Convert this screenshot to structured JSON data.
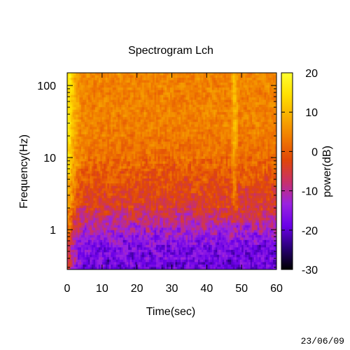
{
  "chart_data": {
    "type": "heatmap",
    "title": "Spectrogram Lch",
    "xlabel": "Time(sec)",
    "ylabel": "Frequency(Hz)",
    "colorbar_label": "power(dB)",
    "x_scale": "linear",
    "y_scale": "log",
    "xlim": [
      0,
      60
    ],
    "ylim": [
      0.28,
      150
    ],
    "clim": [
      -30,
      20
    ],
    "x_ticks": [
      0,
      10,
      20,
      30,
      40,
      50,
      60
    ],
    "x_tick_labels": [
      "0",
      "10",
      "20",
      "30",
      "40",
      "50",
      "60"
    ],
    "y_ticks": [
      1,
      10,
      100
    ],
    "y_tick_labels": [
      "1",
      "10",
      "100"
    ],
    "colorbar_ticks": [
      -30,
      -20,
      -10,
      0,
      10,
      20
    ],
    "colorbar_tick_labels": [
      "-30",
      "-20",
      "-10",
      "0",
      "10",
      "20"
    ],
    "grid": false,
    "colormap": [
      "#000000",
      "#2a0078",
      "#6a00e8",
      "#9a23e0",
      "#c8306a",
      "#e0460a",
      "#f07a00",
      "#f8ae00",
      "#ffe000",
      "#ffff30"
    ],
    "power_profile": [
      {
        "frequency": 0.28,
        "power": -18
      },
      {
        "frequency": 0.6,
        "power": -17
      },
      {
        "frequency": 1,
        "power": -12
      },
      {
        "frequency": 2,
        "power": -5
      },
      {
        "frequency": 5,
        "power": -1
      },
      {
        "frequency": 10,
        "power": 2
      },
      {
        "frequency": 30,
        "power": 4
      },
      {
        "frequency": 100,
        "power": 4
      },
      {
        "frequency": 150,
        "power": 5
      }
    ],
    "features": [
      {
        "time": 0.5,
        "power": 15
      },
      {
        "time": 48,
        "power": 6
      }
    ]
  },
  "footer": {
    "date": "23/06/09"
  }
}
